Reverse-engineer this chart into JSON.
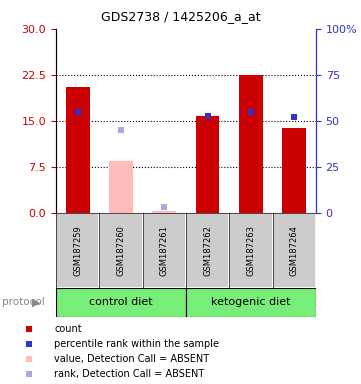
{
  "title": "GDS2738 / 1425206_a_at",
  "samples": [
    "GSM187259",
    "GSM187260",
    "GSM187261",
    "GSM187262",
    "GSM187263",
    "GSM187264"
  ],
  "count_values": [
    20.5,
    null,
    null,
    15.8,
    22.5,
    13.8
  ],
  "count_absent_values": [
    null,
    8.5,
    0.3,
    null,
    null,
    null
  ],
  "rank_pct": [
    55.0,
    null,
    null,
    52.5,
    55.0,
    52.0
  ],
  "rank_absent_pct": [
    null,
    45.0,
    3.5,
    null,
    null,
    null
  ],
  "ylim_left": [
    0,
    30
  ],
  "ylim_right": [
    0,
    100
  ],
  "yticks_left": [
    0,
    7.5,
    15,
    22.5,
    30
  ],
  "yticks_right": [
    0,
    25,
    50,
    75,
    100
  ],
  "yticklabels_right": [
    "0",
    "25",
    "50",
    "75",
    "100%"
  ],
  "protocol_groups": [
    {
      "label": "control diet",
      "indices": [
        0,
        1,
        2
      ]
    },
    {
      "label": "ketogenic diet",
      "indices": [
        3,
        4,
        5
      ]
    }
  ],
  "colors": {
    "count": "#cc0000",
    "rank": "#3333cc",
    "count_absent": "#ffbbbb",
    "rank_absent": "#aaaadd",
    "bar_bg": "#cccccc",
    "group_bg": "#77ee77",
    "tick_left": "#cc0000",
    "tick_right": "#3333cc"
  },
  "bar_width": 0.55,
  "marker_size": 5,
  "figsize": [
    3.61,
    3.84
  ],
  "dpi": 100
}
